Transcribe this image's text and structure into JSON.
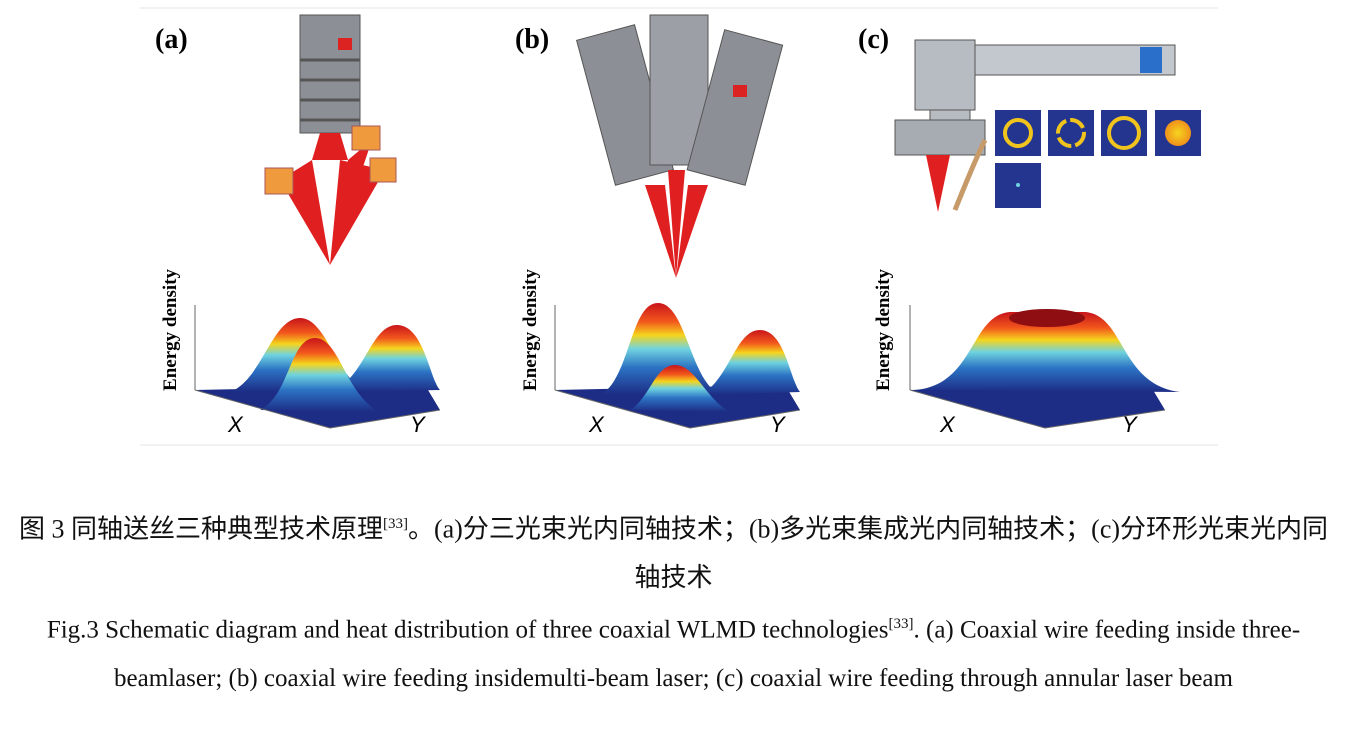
{
  "figure": {
    "panels": [
      {
        "label": "(a)",
        "y_axis_label": "Energy density",
        "x_label": "X",
        "y_label": "Y"
      },
      {
        "label": "(b)",
        "y_axis_label": "Energy density",
        "x_label": "X",
        "y_label": "Y"
      },
      {
        "label": "(c)",
        "y_axis_label": "Energy density",
        "x_label": "X",
        "y_label": "Y"
      }
    ]
  },
  "caption": {
    "zh": {
      "lead": "图 3 同轴送丝三种典型技术原理",
      "ref": "[33]",
      "rest": "。(a)分三光束光内同轴技术；(b)多光束集成光内同轴技术；(c)分环形光束光内同轴技术"
    },
    "en": {
      "lead": "Fig.3 Schematic diagram and heat distribution of three coaxial WLMD technologies",
      "ref": "[33]",
      "rest": ". (a) Coaxial wire feeding inside three-beamlaser; (b) coaxial wire feeding insidemulti-beam laser; (c) coaxial wire feeding through annular laser beam"
    }
  }
}
